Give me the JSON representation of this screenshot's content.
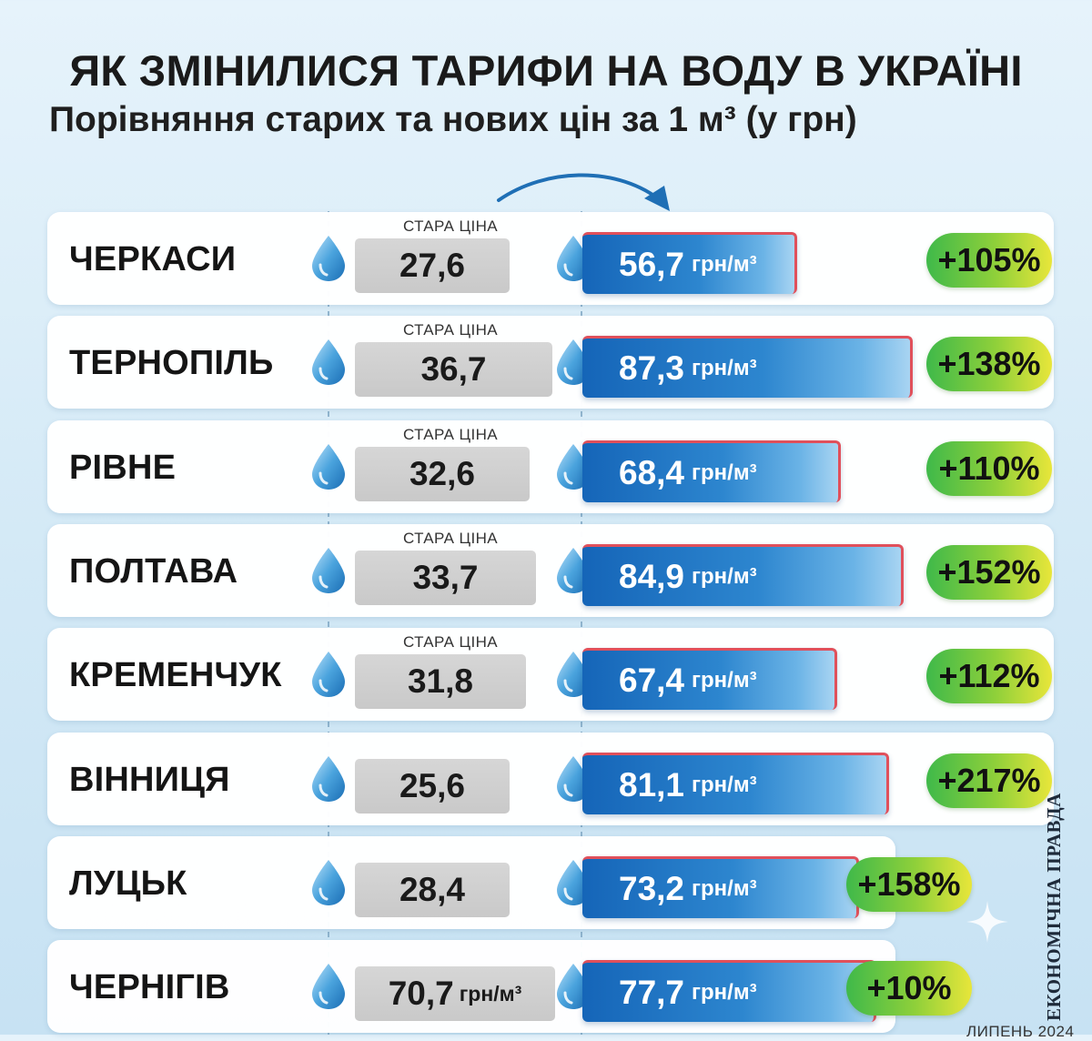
{
  "title": "ЯК ЗМІНИЛИСЯ ТАРИФИ НА ВОДУ В УКРАЇНІ",
  "subtitle": "Порівняння старих та нових цін за 1 м³ (у грн)",
  "old_price_label": "СТАРА ЦІНА",
  "unit": "грн/м³",
  "brand": "ЕКОНОМІЧНА ПРАВДА",
  "date": "ЛИПЕНЬ 2024",
  "colors": {
    "new_price_bar": "#1565b8",
    "old_price_box": "#d0d0d0",
    "change_badge": "#8fd03a",
    "accent_border": "#e0505b"
  },
  "icons": [
    "water-drop-icon",
    "curved-arrow-icon",
    "sparkle-icon"
  ],
  "chart_data": {
    "type": "table",
    "title": "ЯК ЗМІНИЛИСЯ ТАРИФИ НА ВОДУ В УКРАЇНІ",
    "subtitle": "Порівняння старих та нових цін за 1 м³ (у грн)",
    "rows": [
      {
        "city": "ЧЕРКАСИ",
        "old": "27,6",
        "old_value": 27.6,
        "old_label": "СТАРА ЦІНА",
        "old_unit": "",
        "new": "56,7",
        "new_value": 56.7,
        "change": "+105%"
      },
      {
        "city": "ТЕРНОПІЛЬ",
        "old": "36,7",
        "old_value": 36.7,
        "old_label": "СТАРА ЦІНА",
        "old_unit": "",
        "new": "87,3",
        "new_value": 87.3,
        "change": "+138%"
      },
      {
        "city": "РІВНЕ",
        "old": "32,6",
        "old_value": 32.6,
        "old_label": "СТАРА ЦІНА",
        "old_unit": "",
        "new": "68,4",
        "new_value": 68.4,
        "change": "+110%"
      },
      {
        "city": "ПОЛТАВА",
        "old": "33,7",
        "old_value": 33.7,
        "old_label": "СТАРА ЦІНА",
        "old_unit": "",
        "new": "84,9",
        "new_value": 84.9,
        "change": "+152%"
      },
      {
        "city": "КРЕМЕНЧУК",
        "old": "31,8",
        "old_value": 31.8,
        "old_label": "СТАРА ЦІНА",
        "old_unit": "",
        "new": "67,4",
        "new_value": 67.4,
        "change": "+112%"
      },
      {
        "city": "ВІННИЦЯ",
        "old": "25,6",
        "old_value": 25.6,
        "old_label": "",
        "old_unit": "",
        "new": "81,1",
        "new_value": 81.1,
        "change": "+217%"
      },
      {
        "city": "ЛУЦЬК",
        "old": "28,4",
        "old_value": 28.4,
        "old_label": "",
        "old_unit": "",
        "new": "73,2",
        "new_value": 73.2,
        "change": "+158%"
      },
      {
        "city": "ЧЕРНІГІВ",
        "old": "70,7",
        "old_value": 70.7,
        "old_label": "",
        "old_unit": "грн/м³",
        "new": "77,7",
        "new_value": 77.7,
        "change": "+10%"
      }
    ]
  }
}
